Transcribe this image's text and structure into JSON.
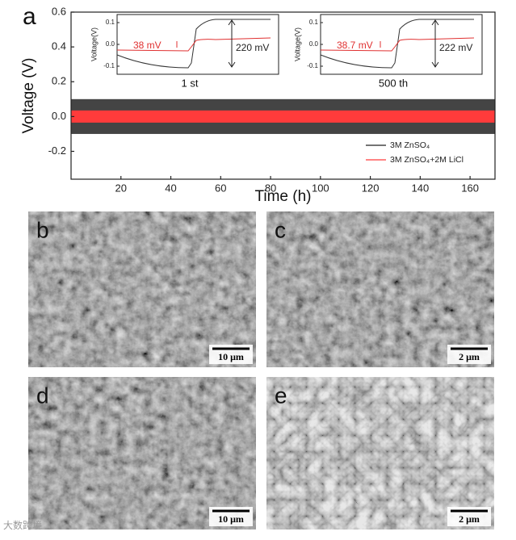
{
  "chart_data": {
    "type": "band",
    "panel": "a",
    "xlabel": "Time (h)",
    "ylabel": "Voltage (V)",
    "xlim": [
      0,
      170
    ],
    "ylim": [
      -0.36,
      0.6
    ],
    "xticks": [
      20,
      40,
      60,
      80,
      100,
      120,
      140,
      160
    ],
    "yticks": [
      -0.2,
      {
        "value": 0,
        "label": "0.0"
      },
      0.2,
      0.4,
      0.6
    ],
    "x": [
      0,
      170
    ],
    "series": [
      {
        "name": "3M ZnSO₄",
        "color": "#444444",
        "upper": 0.1,
        "lower": -0.1
      },
      {
        "name": "3M ZnSO₄+2M LiCl",
        "color": "#ff3b3b",
        "upper": 0.035,
        "lower": -0.035
      }
    ],
    "insets": [
      {
        "ylabel": "Voltage(V)",
        "yticks": [
          "0.1",
          "0.0",
          "-0.1"
        ],
        "drop": "38 mV",
        "rise": "220 mV",
        "caption": "1 st"
      },
      {
        "ylabel": "Voltage(V)",
        "yticks": [
          "0.1",
          "0.0",
          "-0.1"
        ],
        "drop": "38.7 mV",
        "rise": "222 mV",
        "caption": "500 th"
      }
    ]
  },
  "images": [
    {
      "letter": "b",
      "scale": "10 μm"
    },
    {
      "letter": "c",
      "scale": "2 μm"
    },
    {
      "letter": "d",
      "scale": "10 μm"
    },
    {
      "letter": "e",
      "scale": "2 μm"
    }
  ],
  "watermark": "大数跨境"
}
